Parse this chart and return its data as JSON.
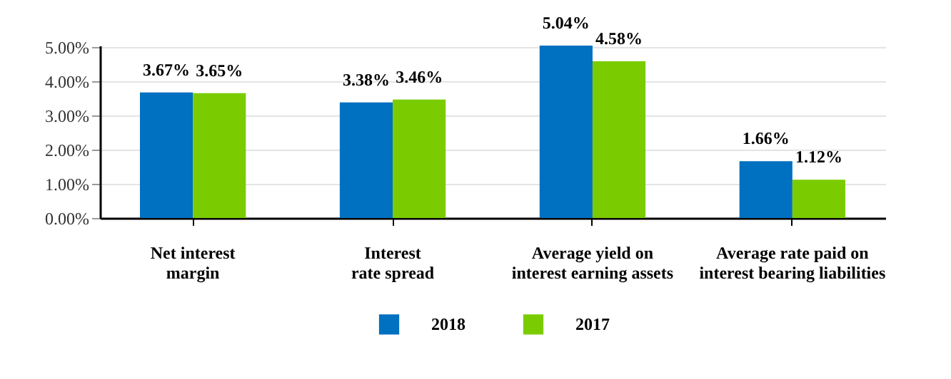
{
  "chart_data": {
    "type": "bar",
    "categories": [
      "Net interest margin",
      "Interest rate spread",
      "Average yield on interest earning assets",
      "Average rate paid on interest bearing liabilities"
    ],
    "series": [
      {
        "name": "2018",
        "color": "#0070c0",
        "values": [
          3.67,
          3.38,
          5.04,
          1.66
        ]
      },
      {
        "name": "2017",
        "color": "#7acc00",
        "values": [
          3.65,
          3.46,
          4.58,
          1.12
        ]
      }
    ],
    "value_labels": [
      [
        "3.67%",
        "3.38%",
        "5.04%",
        "1.66%"
      ],
      [
        "3.65%",
        "3.46%",
        "4.58%",
        "1.12%"
      ]
    ],
    "ylim": [
      0,
      5.04
    ],
    "yticks": [
      {
        "value": 0,
        "label": "0.00%"
      },
      {
        "value": 1,
        "label": "1.00%"
      },
      {
        "value": 2,
        "label": "2.00%"
      },
      {
        "value": 3,
        "label": "3.00%"
      },
      {
        "value": 4,
        "label": "4.00%"
      },
      {
        "value": 5,
        "label": "5.00%"
      }
    ],
    "grid": "y",
    "legend": "bottom"
  }
}
